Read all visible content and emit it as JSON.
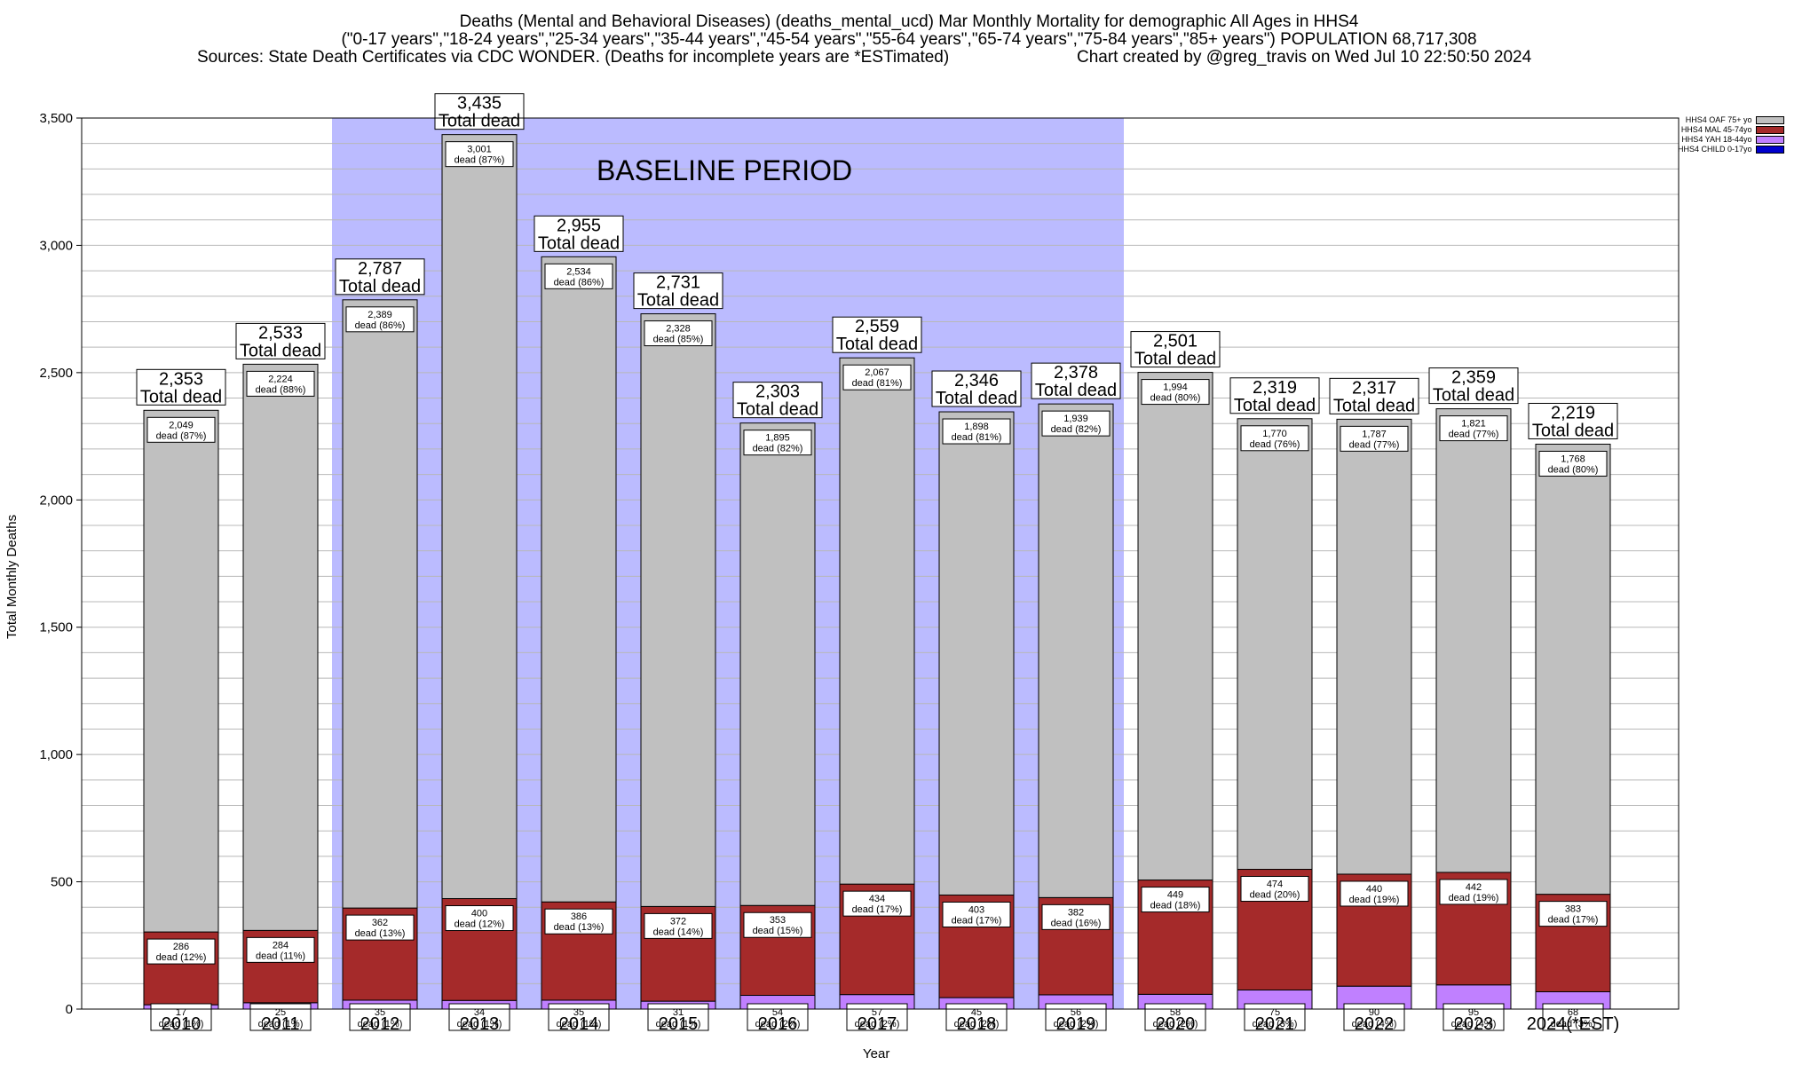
{
  "header": {
    "title_line1": "Deaths (Mental and Behavioral Diseases) (deaths_mental_ucd) Mar Monthly Mortality for demographic All Ages in HHS4",
    "title_line2": "(\"0-17 years\",\"18-24 years\",\"25-34 years\",\"35-44 years\",\"45-54 years\",\"55-64 years\",\"65-74 years\",\"75-84 years\",\"85+ years\") POPULATION 68,717,308",
    "sources": "Sources: State Death Certificates via CDC WONDER. (Deaths for incomplete years are *ESTimated)",
    "created": "Chart created by @greg_travis on Wed Jul 10 22:50:50 2024"
  },
  "annotation": {
    "baseline_label": "BASELINE PERIOD",
    "total_suffix": "Total dead",
    "dead_word": "dead"
  },
  "colors": {
    "oaf": "#c0c0c0",
    "mal": "#a52a2a",
    "yah": "#c080ff",
    "child": "#0000cd",
    "baseline": "#bbbbff"
  },
  "chart_data": {
    "type": "bar",
    "stacked": true,
    "xlabel": "Year",
    "ylabel": "Total Monthly Deaths",
    "ylim": [
      0,
      3500
    ],
    "yticks": [
      0,
      500,
      1000,
      1500,
      2000,
      2500,
      3000,
      3500
    ],
    "ytick_labels": [
      "0",
      "500",
      "1,000",
      "1,500",
      "2,000",
      "2,500",
      "3,000",
      "3,500"
    ],
    "grid": true,
    "legend_position": "top-right",
    "baseline_period": [
      "2012",
      "2019"
    ],
    "categories": [
      "2010",
      "2011",
      "2012",
      "2013",
      "2014",
      "2015",
      "2016",
      "2017",
      "2018",
      "2019",
      "2020",
      "2021",
      "2022",
      "2023",
      "2024(*EST)"
    ],
    "totals": [
      2353,
      2533,
      2787,
      3435,
      2955,
      2731,
      2303,
      2559,
      2346,
      2378,
      2501,
      2319,
      2317,
      2359,
      2219
    ],
    "total_labels": [
      "2,353",
      "2,533",
      "2,787",
      "3,435",
      "2,955",
      "2,731",
      "2,303",
      "2,559",
      "2,346",
      "2,378",
      "2,501",
      "2,319",
      "2,317",
      "2,359",
      "2,219"
    ],
    "series": [
      {
        "name": "HHS4 OAF 75+ yo",
        "values": [
          2049,
          2224,
          2389,
          3001,
          2534,
          2328,
          1895,
          2067,
          1898,
          1939,
          1994,
          1770,
          1787,
          1821,
          1768
        ],
        "labels": [
          "2,049",
          "2,224",
          "2,389",
          "3,001",
          "2,534",
          "2,328",
          "1,895",
          "2,067",
          "1,898",
          "1,939",
          "1,994",
          "1,770",
          "1,787",
          "1,821",
          "1,768"
        ],
        "pcts": [
          "87%",
          "88%",
          "86%",
          "87%",
          "86%",
          "85%",
          "82%",
          "81%",
          "81%",
          "82%",
          "80%",
          "76%",
          "77%",
          "77%",
          "80%"
        ]
      },
      {
        "name": "HHS4 MAL 45-74yo",
        "values": [
          286,
          284,
          362,
          400,
          386,
          372,
          353,
          434,
          403,
          382,
          449,
          474,
          440,
          442,
          383
        ],
        "labels": [
          "286",
          "284",
          "362",
          "400",
          "386",
          "372",
          "353",
          "434",
          "403",
          "382",
          "449",
          "474",
          "440",
          "442",
          "383"
        ],
        "pcts": [
          "12%",
          "11%",
          "13%",
          "12%",
          "13%",
          "14%",
          "15%",
          "17%",
          "17%",
          "16%",
          "18%",
          "20%",
          "19%",
          "19%",
          "17%"
        ]
      },
      {
        "name": "HHS4 YAH 18-44yo",
        "values": [
          17,
          25,
          35,
          34,
          35,
          31,
          54,
          57,
          45,
          56,
          58,
          75,
          90,
          95,
          68
        ],
        "labels": [
          "17",
          "25",
          "35",
          "34",
          "35",
          "31",
          "54",
          "57",
          "45",
          "56",
          "58",
          "75",
          "90",
          "95",
          "68"
        ],
        "pcts": [
          "1%",
          "1%",
          "1%",
          "1%",
          "1%",
          "1%",
          "2%",
          "2%",
          "2%",
          "2%",
          "2%",
          "3%",
          "4%",
          "4%",
          "3%"
        ]
      },
      {
        "name": "HHS4 CHILD 0-17yo",
        "values": [
          0,
          0,
          0,
          0,
          0,
          0,
          0,
          0,
          0,
          0,
          0,
          0,
          0,
          0,
          0
        ]
      }
    ]
  }
}
